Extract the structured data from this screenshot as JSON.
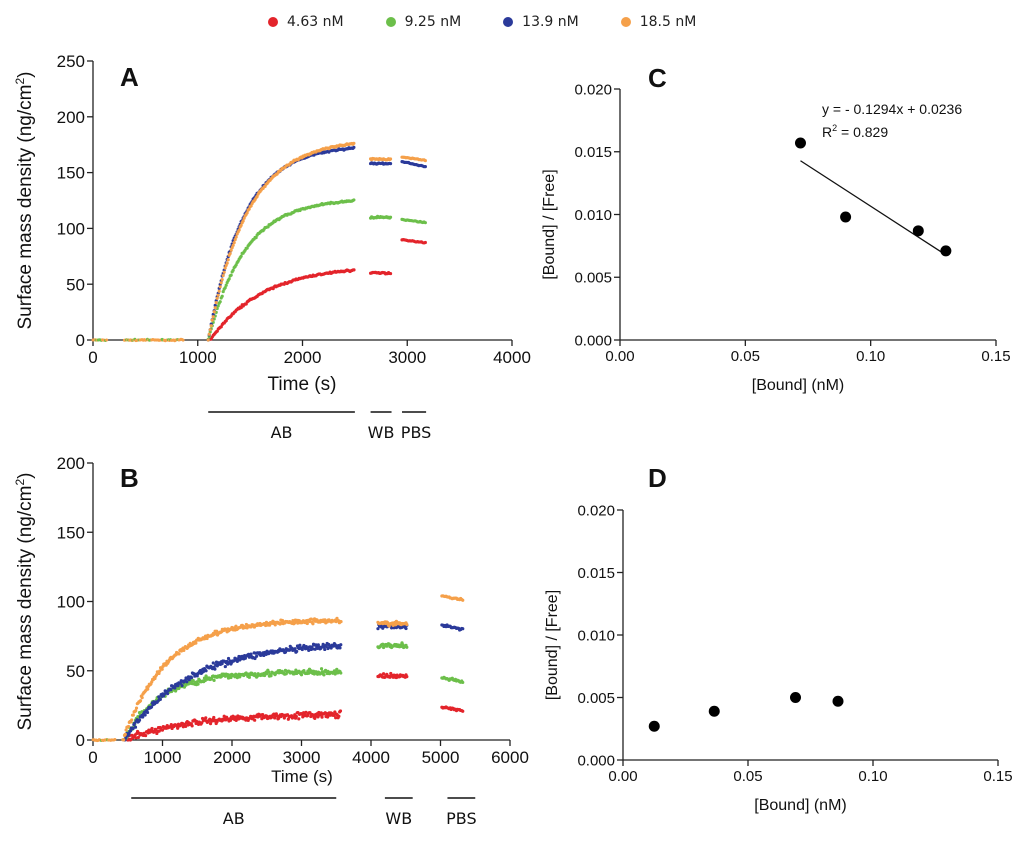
{
  "legend": [
    {
      "label": "4.63 nM",
      "color": "#e3242b"
    },
    {
      "label": "9.25 nM",
      "color": "#6cbf4a"
    },
    {
      "label": "13.9 nM",
      "color": "#2b3a9a"
    },
    {
      "label": "18.5 nM",
      "color": "#f5a04a"
    }
  ],
  "chart_data": [
    {
      "panel": "A",
      "type": "scatter",
      "title": "A",
      "xlabel": "Time (s)",
      "ylabel": "Surface mass density (ng/cm²)",
      "xlim": [
        0,
        4000
      ],
      "ylim": [
        0,
        250
      ],
      "xticks": [
        0,
        1000,
        2000,
        3000,
        4000
      ],
      "yticks": [
        0,
        50,
        100,
        150,
        200,
        250
      ],
      "baseline": {
        "x_ranges": [
          [
            0,
            130
          ],
          [
            300,
            860
          ]
        ],
        "value": 0
      },
      "phases": [
        {
          "label": "AB",
          "x_start": 1100,
          "x_end": 2500
        },
        {
          "label": "WB",
          "x_start": 2650,
          "x_end": 2850
        },
        {
          "label": "PBS",
          "x_start": 2950,
          "x_end": 3180
        }
      ],
      "series": [
        {
          "name": "4.63 nM",
          "association": {
            "t_start": 1120,
            "t_end": 2500,
            "plateau": 67,
            "tau": 500
          },
          "wb": 60,
          "pbs": 88
        },
        {
          "name": "9.25 nM",
          "association": {
            "t_start": 1100,
            "t_end": 2500,
            "plateau": 127,
            "tau": 350
          },
          "wb": 110,
          "pbs": 106
        },
        {
          "name": "13.9 nM",
          "association": {
            "t_start": 1100,
            "t_end": 2500,
            "plateau": 175,
            "tau": 340
          },
          "wb": 158,
          "pbs": 157
        },
        {
          "name": "18.5 nM",
          "association": {
            "t_start": 1100,
            "t_end": 2500,
            "plateau": 180,
            "tau": 370
          },
          "wb": 162,
          "pbs": 162
        }
      ]
    },
    {
      "panel": "B",
      "type": "scatter",
      "title": "B",
      "xlabel": "Time (s)",
      "ylabel": "Surface mass density (ng/cm²)",
      "xlim": [
        0,
        6000
      ],
      "ylim": [
        0,
        200
      ],
      "xticks": [
        0,
        1000,
        2000,
        3000,
        4000,
        5000,
        6000
      ],
      "yticks": [
        0,
        50,
        100,
        150,
        200
      ],
      "baseline": {
        "x_ranges": [
          [
            0,
            320
          ]
        ],
        "value": 0
      },
      "phases": [
        {
          "label": "AB",
          "x_start": 550,
          "x_end": 3500
        },
        {
          "label": "WB",
          "x_start": 4200,
          "x_end": 4600
        },
        {
          "label": "PBS",
          "x_start": 5100,
          "x_end": 5500
        }
      ],
      "series": [
        {
          "name": "4.63 nM",
          "association": {
            "t_start": 480,
            "t_end": 3570,
            "plateau": 19,
            "tau": 900
          },
          "wb": 46,
          "pbs": 22
        },
        {
          "name": "9.25 nM",
          "association": {
            "t_start": 450,
            "t_end": 3570,
            "plateau": 49,
            "tau": 520
          },
          "wb": 68,
          "pbs": 43
        },
        {
          "name": "13.9 nM",
          "association": {
            "t_start": 450,
            "t_end": 3570,
            "plateau": 70,
            "tau": 900
          },
          "wb": 82,
          "pbs": 81
        },
        {
          "name": "18.5 nM",
          "association": {
            "t_start": 430,
            "t_end": 3570,
            "plateau": 87,
            "tau": 620
          },
          "wb": 84,
          "pbs": 102
        }
      ]
    },
    {
      "panel": "C",
      "type": "scatter",
      "title": "C",
      "xlabel": "[Bound] (nM)",
      "ylabel": "[Bound] / [Free]",
      "xlim": [
        0,
        0.15
      ],
      "ylim": [
        0,
        0.02
      ],
      "xticks": [
        "0.00",
        "0.05",
        "0.10",
        "0.15"
      ],
      "yticks": [
        "0.000",
        "0.005",
        "0.010",
        "0.015",
        "0.020"
      ],
      "points": [
        [
          0.072,
          0.0157
        ],
        [
          0.09,
          0.0098
        ],
        [
          0.119,
          0.0087
        ],
        [
          0.13,
          0.0071
        ]
      ],
      "fit": {
        "slope": -0.1294,
        "intercept": 0.0236,
        "x_range": [
          0.072,
          0.129
        ]
      },
      "annotation": {
        "equation": "y =  - 0.1294x + 0.0236",
        "r2_label": "R",
        "r2_sup": "2",
        "r2_value": " = 0.829"
      }
    },
    {
      "panel": "D",
      "type": "scatter",
      "title": "D",
      "xlabel": "[Bound] (nM)",
      "ylabel": "[Bound] / [Free]",
      "xlim": [
        0,
        0.15
      ],
      "ylim": [
        0,
        0.02
      ],
      "xticks": [
        "0.00",
        "0.05",
        "0.10",
        "0.15"
      ],
      "yticks": [
        "0.000",
        "0.005",
        "0.010",
        "0.015",
        "0.020"
      ],
      "points": [
        [
          0.0125,
          0.0027
        ],
        [
          0.0365,
          0.0039
        ],
        [
          0.069,
          0.005
        ],
        [
          0.086,
          0.0047
        ]
      ]
    }
  ]
}
